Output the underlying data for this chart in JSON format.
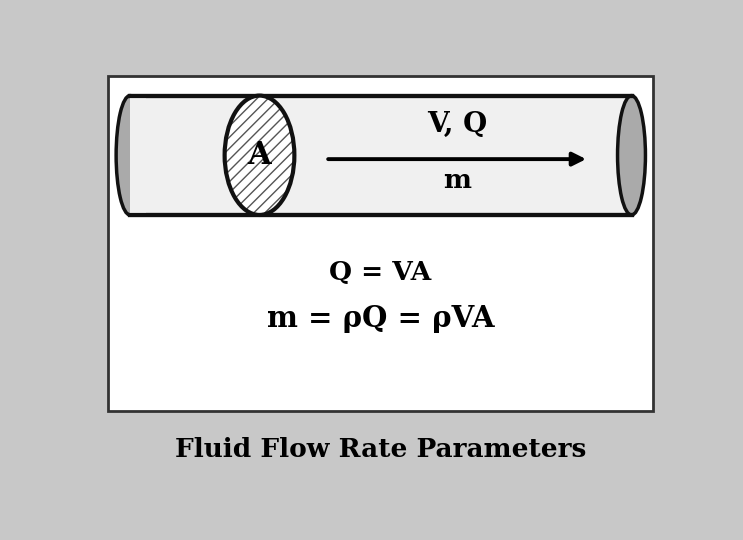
{
  "bg_color": "#c8c8c8",
  "box_bg": "#ffffff",
  "title": "Fluid Flow Rate Parameters",
  "title_fontsize": 19,
  "eq1": "Q = VA",
  "eq2": "m = ρQ = ρVA",
  "eq_fontsize": 19,
  "label_V_Q": "V, Q",
  "label_m": "m",
  "label_A": "A",
  "pipe_fill": "#f0f0f0",
  "pipe_edge": "#111111",
  "pipe_lw": 3.0,
  "end_ellipse_color": "#aaaaaa",
  "hatch_color": "#555555",
  "ellipse_hatch": "///"
}
